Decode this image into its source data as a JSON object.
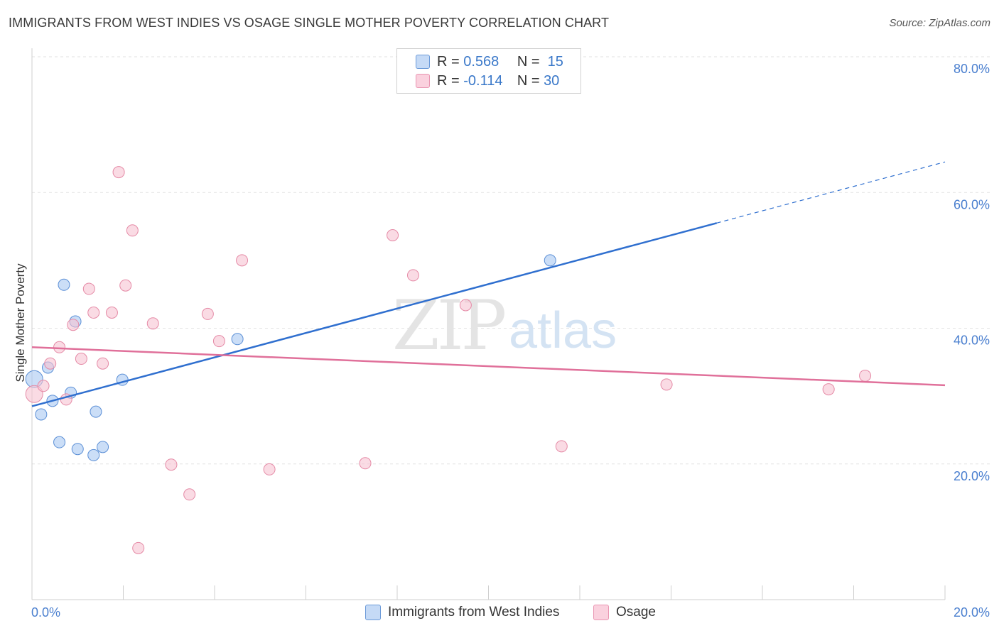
{
  "title": "IMMIGRANTS FROM WEST INDIES VS OSAGE SINGLE MOTHER POVERTY CORRELATION CHART",
  "source": "Source: ZipAtlas.com",
  "watermark": {
    "zip": "ZIP",
    "atlas": "atlas"
  },
  "legend": {
    "rows": [
      {
        "r_label": "R =",
        "r_value": "0.568",
        "n_label": "N =",
        "n_value": "15"
      },
      {
        "r_label": "R =",
        "r_value": "-0.114",
        "n_label": "N =",
        "n_value": "30"
      }
    ]
  },
  "bottom_legend": [
    "Immigrants from West Indies",
    "Osage"
  ],
  "chart_data": {
    "type": "scatter",
    "title": "IMMIGRANTS FROM WEST INDIES VS OSAGE SINGLE MOTHER POVERTY CORRELATION CHART",
    "xlabel": "",
    "ylabel": "Single Mother Poverty",
    "xlim": [
      0,
      20
    ],
    "ylim": [
      0,
      80
    ],
    "x_tick_labels": [
      "0.0%",
      "20.0%"
    ],
    "y_tick_labels": [
      "20.0%",
      "40.0%",
      "60.0%",
      "80.0%"
    ],
    "y_ticks": [
      20,
      40,
      60,
      80
    ],
    "grid": true,
    "legend_placement": "top-center",
    "series": [
      {
        "name": "Immigrants from West Indies",
        "color": "#a9c8f2",
        "stroke": "#5b8fd6",
        "line_color": "#2f6fcf",
        "R": 0.568,
        "N": 15,
        "points": [
          [
            0.05,
            32.5
          ],
          [
            0.2,
            27.3
          ],
          [
            0.35,
            34.2
          ],
          [
            0.45,
            29.3
          ],
          [
            0.6,
            23.2
          ],
          [
            0.7,
            46.4
          ],
          [
            0.85,
            30.5
          ],
          [
            0.95,
            41.0
          ],
          [
            1.0,
            22.2
          ],
          [
            1.35,
            21.3
          ],
          [
            1.4,
            27.7
          ],
          [
            1.55,
            22.5
          ],
          [
            1.98,
            32.4
          ],
          [
            4.5,
            38.4
          ],
          [
            11.35,
            50.0
          ]
        ],
        "trend": {
          "x0": 0,
          "y0": 28.5,
          "x1": 15.0,
          "y1": 55.5,
          "x_dash_end": 20.0,
          "y_dash_end": 64.5
        }
      },
      {
        "name": "Osage",
        "color": "#f6c3d2",
        "stroke": "#e58aa6",
        "line_color": "#e0709a",
        "R": -0.114,
        "N": 30,
        "points": [
          [
            0.05,
            30.3
          ],
          [
            0.25,
            31.5
          ],
          [
            0.4,
            34.8
          ],
          [
            0.6,
            37.2
          ],
          [
            0.75,
            29.5
          ],
          [
            0.9,
            40.5
          ],
          [
            1.08,
            35.5
          ],
          [
            1.25,
            45.8
          ],
          [
            1.35,
            42.3
          ],
          [
            1.55,
            34.8
          ],
          [
            1.75,
            42.3
          ],
          [
            1.9,
            63.0
          ],
          [
            2.05,
            46.3
          ],
          [
            2.2,
            54.4
          ],
          [
            2.33,
            7.6
          ],
          [
            2.65,
            40.7
          ],
          [
            3.05,
            19.9
          ],
          [
            3.45,
            15.5
          ],
          [
            3.85,
            42.1
          ],
          [
            4.1,
            38.1
          ],
          [
            4.6,
            50.0
          ],
          [
            5.2,
            19.2
          ],
          [
            7.3,
            20.1
          ],
          [
            7.9,
            53.7
          ],
          [
            8.35,
            47.8
          ],
          [
            9.5,
            43.4
          ],
          [
            11.6,
            22.6
          ],
          [
            13.9,
            31.7
          ],
          [
            17.45,
            31.0
          ],
          [
            18.25,
            33.0
          ]
        ],
        "trend": {
          "x0": 0,
          "y0": 37.2,
          "x1": 20.0,
          "y1": 31.6
        }
      }
    ]
  }
}
